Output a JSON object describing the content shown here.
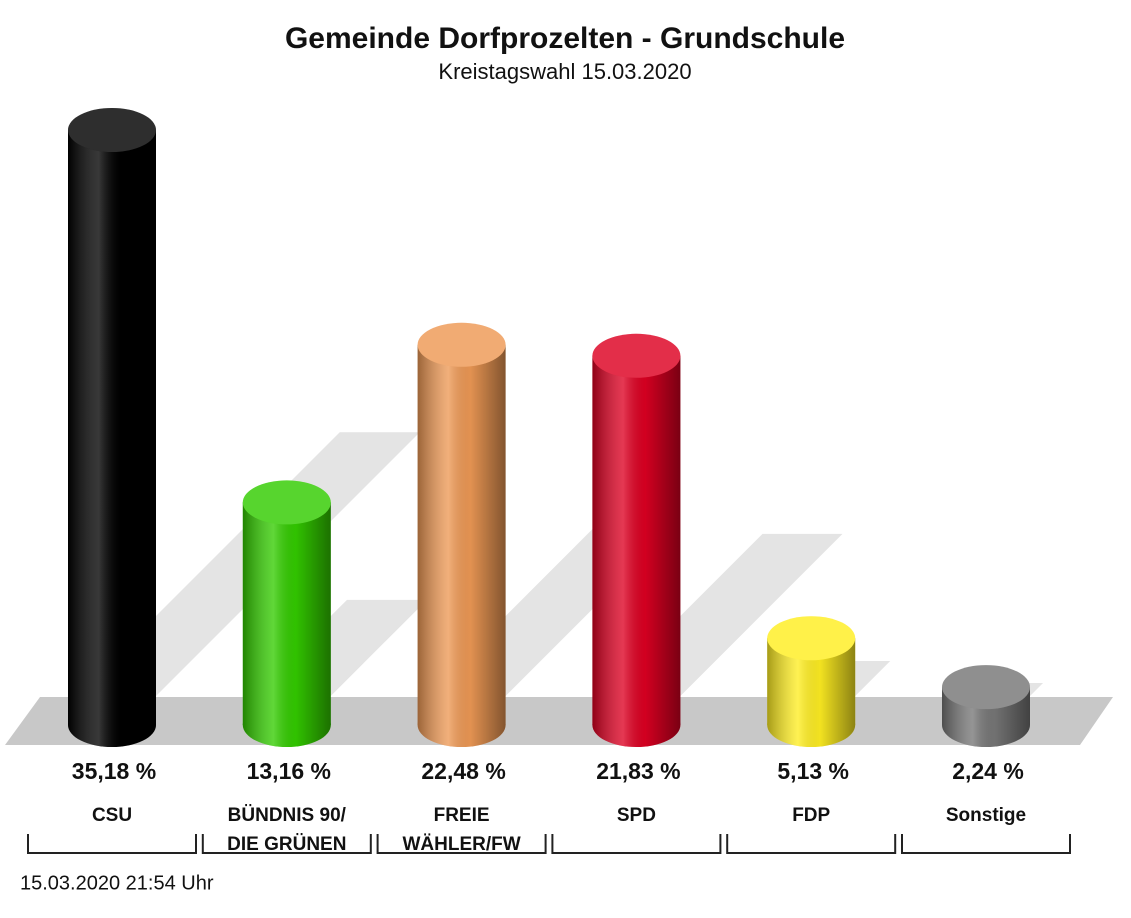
{
  "chart_data": {
    "type": "bar",
    "title": "Gemeinde Dorfprozelten - Grundschule",
    "subtitle": "Kreistagswahl 15.03.2020",
    "categories": [
      [
        "CSU"
      ],
      [
        "BÜNDNIS 90/",
        "DIE GRÜNEN"
      ],
      [
        "FREIE",
        "WÄHLER/FW"
      ],
      [
        "SPD"
      ],
      [
        "FDP"
      ],
      [
        "Sonstige"
      ]
    ],
    "values": [
      35.18,
      13.16,
      22.48,
      21.83,
      5.13,
      2.24
    ],
    "value_labels": [
      "35,18 %",
      "13,16 %",
      "22,48 %",
      "21,83 %",
      "5,13 %",
      "2,24 %"
    ],
    "colors": [
      "#000000",
      "#33cc00",
      "#ee9955",
      "#dd0022",
      "#ffee22",
      "#777777"
    ],
    "footnote": "15.03.2020 21:54 Uhr"
  }
}
